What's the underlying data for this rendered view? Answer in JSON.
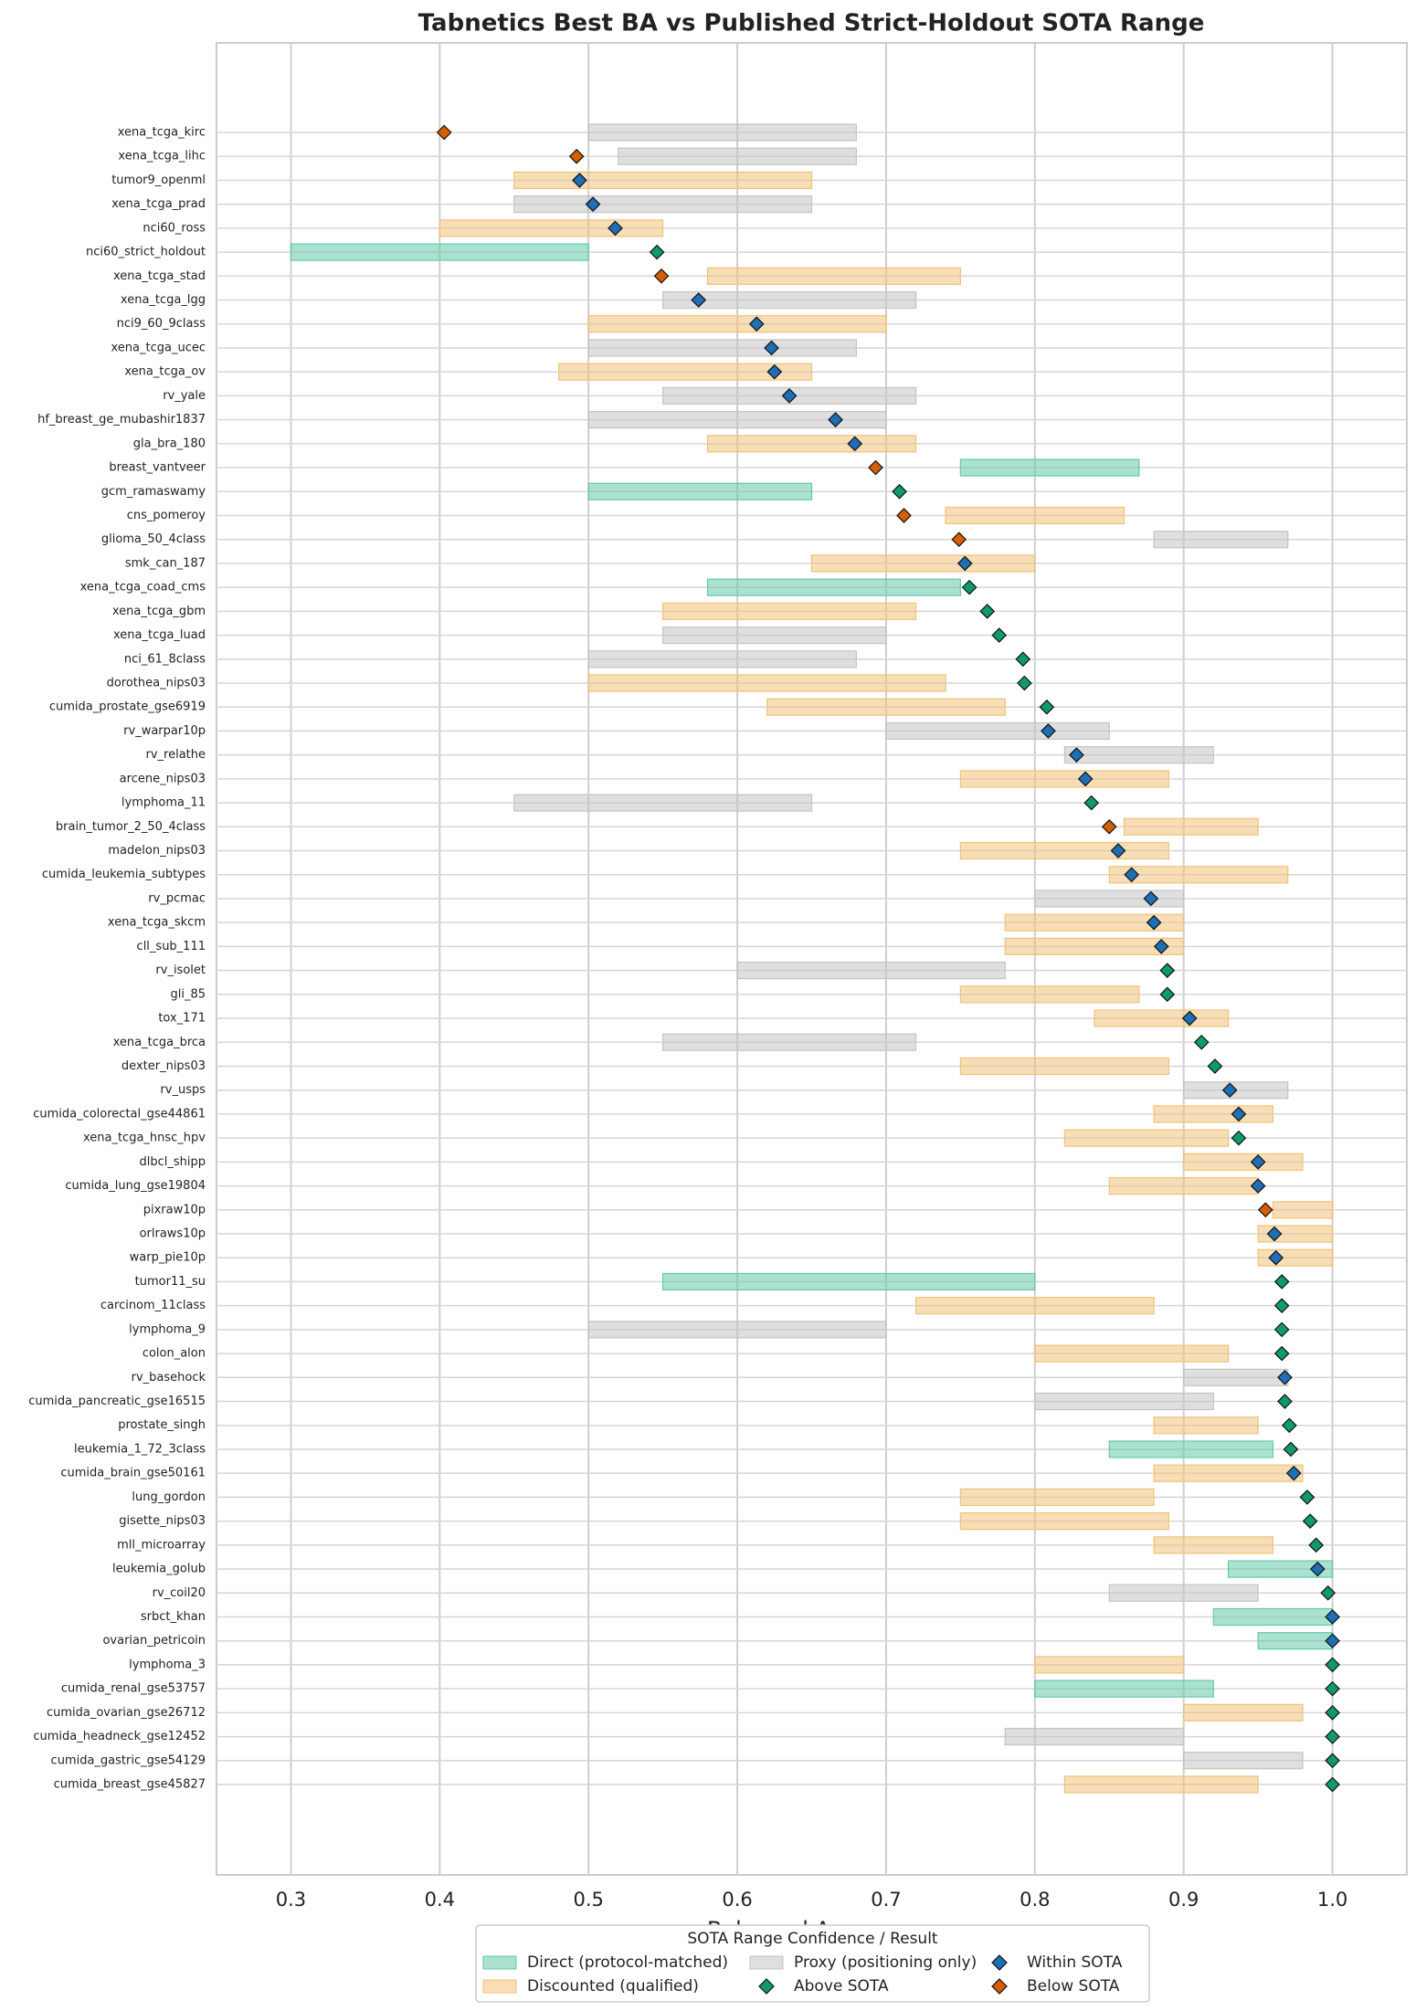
{
  "chart_data": {
    "type": "range-dot",
    "title": "Tabnetics Best BA vs Published Strict-Holdout SOTA Range",
    "x_label": "Balanced Accuracy",
    "legend_title": "SOTA Range Confidence / Result",
    "legend_position": "bottom",
    "grid": true,
    "xlim": [
      0.25,
      1.05
    ],
    "xticks": [
      0.3,
      0.4,
      0.5,
      0.6,
      0.7,
      0.8,
      0.9,
      {
        "value": 1.0,
        "label": "1.0"
      }
    ],
    "categories": [
      "xena_tcga_kirc",
      "xena_tcga_lihc",
      "tumor9_openml",
      "xena_tcga_prad",
      "nci60_ross",
      "nci60_strict_holdout",
      "xena_tcga_stad",
      "xena_tcga_lgg",
      "nci9_60_9class",
      "xena_tcga_ucec",
      "xena_tcga_ov",
      "rv_yale",
      "hf_breast_ge_mubashir1837",
      "gla_bra_180",
      "breast_vantveer",
      "gcm_ramaswamy",
      "cns_pomeroy",
      "glioma_50_4class",
      "smk_can_187",
      "xena_tcga_coad_cms",
      "xena_tcga_gbm",
      "xena_tcga_luad",
      "nci_61_8class",
      "dorothea_nips03",
      "cumida_prostate_gse6919",
      "rv_warpar10p",
      "rv_relathe",
      "arcene_nips03",
      "lymphoma_11",
      "brain_tumor_2_50_4class",
      "madelon_nips03",
      "cumida_leukemia_subtypes",
      "rv_pcmac",
      "xena_tcga_skcm",
      "cll_sub_111",
      "rv_isolet",
      "gli_85",
      "tox_171",
      "xena_tcga_brca",
      "dexter_nips03",
      "rv_usps",
      "cumida_colorectal_gse44861",
      "xena_tcga_hnsc_hpv",
      "dlbcl_shipp",
      "cumida_lung_gse19804",
      "pixraw10p",
      "orlraws10p",
      "warp_pie10p",
      "tumor11_su",
      "carcinom_11class",
      "lymphoma_9",
      "colon_alon",
      "rv_basehock",
      "cumida_pancreatic_gse16515",
      "prostate_singh",
      "leukemia_1_72_3class",
      "cumida_brain_gse50161",
      "lung_gordon",
      "gisette_nips03",
      "mll_microarray",
      "leukemia_golub",
      "rv_coil20",
      "srbct_khan",
      "ovarian_petricoin",
      "lymphoma_3",
      "cumida_renal_gse53757",
      "cumida_ovarian_gse26712",
      "cumida_headneck_gse12452",
      "cumida_gastric_gse54129",
      "cumida_breast_gse45827"
    ],
    "series": [
      {
        "name": "Direct (protocol-matched)",
        "color": "#66c9a9",
        "values": [
          null,
          null,
          null,
          null,
          null,
          [
            0.3,
            0.5
          ],
          null,
          null,
          null,
          null,
          null,
          null,
          null,
          null,
          [
            0.75,
            0.87
          ],
          [
            0.5,
            0.65
          ],
          null,
          null,
          null,
          [
            0.58,
            0.75
          ],
          null,
          null,
          null,
          null,
          null,
          null,
          null,
          null,
          null,
          null,
          null,
          null,
          null,
          null,
          null,
          null,
          null,
          null,
          null,
          null,
          null,
          null,
          null,
          null,
          null,
          null,
          null,
          null,
          [
            0.55,
            0.8
          ],
          null,
          null,
          null,
          null,
          null,
          null,
          [
            0.85,
            0.96
          ],
          null,
          null,
          null,
          null,
          [
            0.93,
            1.0
          ],
          null,
          [
            0.92,
            1.0
          ],
          [
            0.95,
            1.0
          ],
          null,
          [
            0.8,
            0.92
          ],
          null,
          null,
          null,
          null
        ]
      },
      {
        "name": "Discounted (qualified)",
        "color": "#f0c27a",
        "values": [
          null,
          null,
          [
            0.45,
            0.65
          ],
          null,
          [
            0.4,
            0.55
          ],
          null,
          [
            0.58,
            0.75
          ],
          null,
          [
            0.5,
            0.7
          ],
          null,
          [
            0.48,
            0.65
          ],
          null,
          null,
          [
            0.58,
            0.72
          ],
          null,
          null,
          [
            0.74,
            0.86
          ],
          null,
          [
            0.65,
            0.8
          ],
          null,
          [
            0.55,
            0.72
          ],
          null,
          null,
          [
            0.5,
            0.74
          ],
          [
            0.62,
            0.78
          ],
          null,
          null,
          [
            0.75,
            0.89
          ],
          null,
          [
            0.86,
            0.95
          ],
          [
            0.75,
            0.89
          ],
          [
            0.85,
            0.97
          ],
          null,
          [
            0.78,
            0.9
          ],
          [
            0.78,
            0.9
          ],
          null,
          [
            0.75,
            0.87
          ],
          [
            0.84,
            0.93
          ],
          null,
          [
            0.75,
            0.89
          ],
          null,
          [
            0.88,
            0.96
          ],
          [
            0.82,
            0.93
          ],
          [
            0.9,
            0.98
          ],
          [
            0.85,
            0.95
          ],
          [
            0.96,
            1.0
          ],
          [
            0.95,
            1.0
          ],
          [
            0.95,
            1.0
          ],
          null,
          [
            0.72,
            0.88
          ],
          null,
          [
            0.8,
            0.93
          ],
          null,
          null,
          [
            0.88,
            0.95
          ],
          null,
          [
            0.88,
            0.98
          ],
          [
            0.75,
            0.88
          ],
          [
            0.75,
            0.89
          ],
          [
            0.88,
            0.96
          ],
          null,
          null,
          null,
          null,
          [
            0.8,
            0.9
          ],
          null,
          [
            0.9,
            0.98
          ],
          null,
          null,
          [
            0.82,
            0.95
          ]
        ]
      },
      {
        "name": "Proxy (positioning only)",
        "color": "#c4c4c4",
        "values": [
          [
            0.5,
            0.68
          ],
          [
            0.52,
            0.68
          ],
          null,
          [
            0.45,
            0.65
          ],
          null,
          null,
          null,
          [
            0.55,
            0.72
          ],
          null,
          [
            0.5,
            0.68
          ],
          null,
          [
            0.55,
            0.72
          ],
          [
            0.5,
            0.7
          ],
          null,
          null,
          null,
          null,
          [
            0.88,
            0.97
          ],
          null,
          null,
          null,
          [
            0.55,
            0.7
          ],
          [
            0.5,
            0.68
          ],
          null,
          null,
          [
            0.7,
            0.85
          ],
          [
            0.82,
            0.92
          ],
          null,
          [
            0.45,
            0.65
          ],
          null,
          null,
          null,
          [
            0.8,
            0.9
          ],
          null,
          null,
          [
            0.6,
            0.78
          ],
          null,
          null,
          [
            0.55,
            0.72
          ],
          null,
          [
            0.9,
            0.97
          ],
          null,
          null,
          null,
          null,
          null,
          null,
          null,
          null,
          null,
          [
            0.5,
            0.7
          ],
          null,
          [
            0.9,
            0.97
          ],
          [
            0.8,
            0.92
          ],
          null,
          null,
          null,
          null,
          null,
          null,
          null,
          [
            0.85,
            0.95
          ],
          null,
          null,
          null,
          null,
          null,
          [
            0.78,
            0.9
          ],
          [
            0.9,
            0.98
          ],
          null
        ]
      },
      {
        "name": "Above SOTA",
        "color": "#0f9a6c",
        "values": [
          null,
          null,
          null,
          null,
          null,
          0.546,
          null,
          null,
          null,
          null,
          null,
          null,
          null,
          null,
          null,
          0.709,
          null,
          null,
          null,
          0.756,
          0.768,
          0.776,
          0.792,
          0.793,
          0.808,
          null,
          null,
          null,
          0.838,
          null,
          null,
          null,
          null,
          null,
          null,
          0.889,
          0.889,
          null,
          0.912,
          0.921,
          null,
          null,
          0.937,
          null,
          null,
          null,
          null,
          null,
          0.966,
          0.966,
          0.966,
          0.966,
          null,
          0.968,
          0.971,
          0.972,
          null,
          0.983,
          0.985,
          0.989,
          null,
          0.997,
          null,
          null,
          1.0,
          1.0,
          1.0,
          1.0,
          1.0,
          1.0
        ]
      },
      {
        "name": "Within SOTA",
        "color": "#1f6fb4",
        "values": [
          null,
          null,
          0.494,
          0.503,
          0.518,
          null,
          null,
          0.574,
          0.613,
          0.623,
          0.625,
          0.635,
          0.666,
          0.679,
          null,
          null,
          null,
          null,
          0.753,
          null,
          null,
          null,
          null,
          null,
          null,
          0.809,
          0.828,
          0.834,
          null,
          null,
          0.856,
          0.865,
          0.878,
          0.88,
          0.885,
          null,
          null,
          0.904,
          null,
          null,
          0.931,
          0.937,
          null,
          0.95,
          0.95,
          null,
          0.961,
          0.962,
          null,
          null,
          null,
          null,
          0.968,
          null,
          null,
          null,
          0.974,
          null,
          null,
          null,
          0.99,
          null,
          1.0,
          1.0,
          null,
          null,
          null,
          null,
          null,
          null
        ]
      },
      {
        "name": "Below SOTA",
        "color": "#d55e00",
        "values": [
          0.403,
          0.492,
          null,
          null,
          null,
          null,
          0.549,
          null,
          null,
          null,
          null,
          null,
          null,
          null,
          0.693,
          null,
          0.712,
          0.749,
          null,
          null,
          null,
          null,
          null,
          null,
          null,
          null,
          null,
          null,
          null,
          0.85,
          null,
          null,
          null,
          null,
          null,
          null,
          null,
          null,
          null,
          null,
          null,
          null,
          null,
          null,
          null,
          0.955,
          null,
          null,
          null,
          null,
          null,
          null,
          null,
          null,
          null,
          null,
          null,
          null,
          null,
          null,
          null,
          null,
          null,
          null,
          null,
          null,
          null,
          null,
          null,
          null
        ]
      }
    ]
  }
}
